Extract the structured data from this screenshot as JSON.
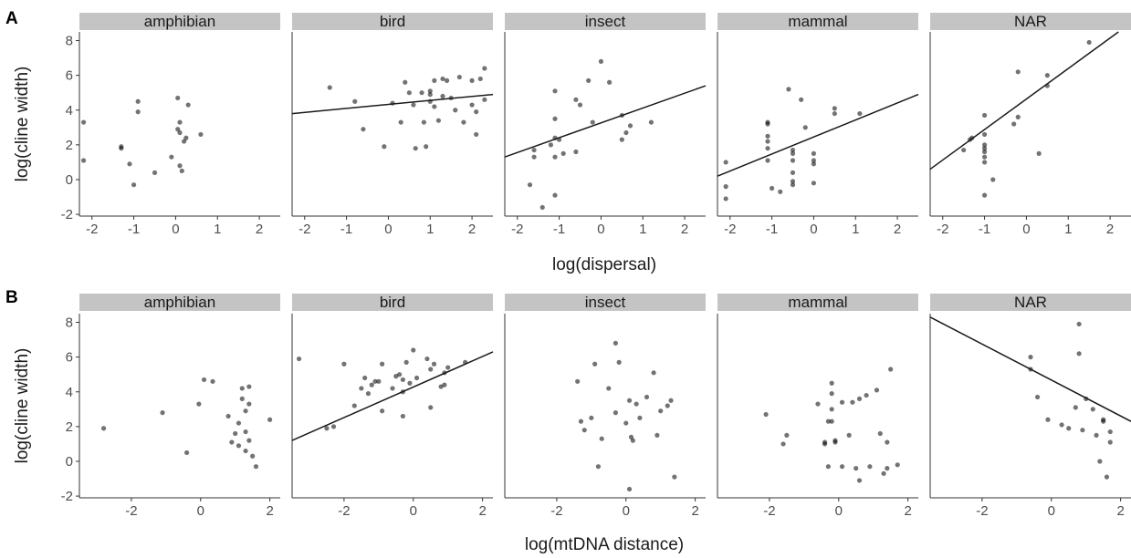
{
  "chart_data": [
    {
      "type": "scatter",
      "panel_label": "A",
      "xlabel": "log(dispersal)",
      "ylabel": "log(cline width)",
      "xlim": [
        -2.3,
        2.5
      ],
      "ylim": [
        -2.1,
        8.5
      ],
      "x_ticks": [
        -2,
        -1,
        0,
        1,
        2
      ],
      "y_ticks": [
        -2,
        0,
        2,
        4,
        6,
        8
      ],
      "facets": [
        {
          "name": "amphibian",
          "points": [
            [
              -2.2,
              3.3
            ],
            [
              -2.2,
              1.1
            ],
            [
              -1.3,
              1.9
            ],
            [
              -1.3,
              1.8
            ],
            [
              -1.1,
              0.9
            ],
            [
              -1.0,
              -0.3
            ],
            [
              -0.9,
              4.5
            ],
            [
              -0.9,
              3.9
            ],
            [
              -0.5,
              0.4
            ],
            [
              -0.1,
              1.3
            ],
            [
              0.05,
              4.7
            ],
            [
              0.05,
              2.9
            ],
            [
              0.1,
              3.3
            ],
            [
              0.1,
              2.7
            ],
            [
              0.1,
              0.8
            ],
            [
              0.15,
              0.5
            ],
            [
              0.2,
              2.2
            ],
            [
              0.25,
              2.4
            ],
            [
              0.3,
              4.3
            ],
            [
              0.6,
              2.6
            ]
          ],
          "fit": null
        },
        {
          "name": "bird",
          "points": [
            [
              -1.4,
              5.3
            ],
            [
              -0.8,
              4.5
            ],
            [
              -0.6,
              2.9
            ],
            [
              -0.1,
              1.9
            ],
            [
              0.1,
              4.4
            ],
            [
              0.3,
              3.3
            ],
            [
              0.4,
              5.6
            ],
            [
              0.5,
              5.0
            ],
            [
              0.6,
              4.3
            ],
            [
              0.65,
              1.8
            ],
            [
              0.8,
              5.0
            ],
            [
              0.85,
              3.3
            ],
            [
              0.9,
              1.9
            ],
            [
              1.0,
              5.1
            ],
            [
              1.0,
              4.9
            ],
            [
              1.0,
              4.5
            ],
            [
              1.1,
              5.7
            ],
            [
              1.1,
              4.2
            ],
            [
              1.2,
              3.4
            ],
            [
              1.3,
              5.8
            ],
            [
              1.3,
              4.8
            ],
            [
              1.4,
              5.7
            ],
            [
              1.5,
              4.7
            ],
            [
              1.6,
              4.0
            ],
            [
              1.7,
              5.9
            ],
            [
              1.8,
              3.3
            ],
            [
              2.0,
              5.7
            ],
            [
              2.0,
              4.3
            ],
            [
              2.1,
              3.9
            ],
            [
              2.1,
              2.6
            ],
            [
              2.2,
              5.8
            ],
            [
              2.3,
              6.4
            ],
            [
              2.3,
              4.6
            ]
          ],
          "fit": {
            "x": [
              -2.3,
              2.5
            ],
            "y": [
              3.8,
              4.9
            ]
          }
        },
        {
          "name": "insect",
          "points": [
            [
              -1.7,
              -0.3
            ],
            [
              -1.6,
              1.3
            ],
            [
              -1.6,
              1.7
            ],
            [
              -1.4,
              -1.6
            ],
            [
              -1.2,
              2.0
            ],
            [
              -1.1,
              5.1
            ],
            [
              -1.1,
              3.5
            ],
            [
              -1.1,
              2.4
            ],
            [
              -1.1,
              1.3
            ],
            [
              -1.1,
              -0.9
            ],
            [
              -1.0,
              2.3
            ],
            [
              -0.9,
              1.5
            ],
            [
              -0.6,
              4.6
            ],
            [
              -0.6,
              1.6
            ],
            [
              -0.5,
              4.3
            ],
            [
              -0.3,
              5.7
            ],
            [
              -0.2,
              3.3
            ],
            [
              0.0,
              6.8
            ],
            [
              0.2,
              5.6
            ],
            [
              0.5,
              3.7
            ],
            [
              0.5,
              2.3
            ],
            [
              0.6,
              2.7
            ],
            [
              0.7,
              3.1
            ],
            [
              1.2,
              3.3
            ]
          ],
          "fit": {
            "x": [
              -2.3,
              2.5
            ],
            "y": [
              1.3,
              5.4
            ]
          }
        },
        {
          "name": "mammal",
          "points": [
            [
              -2.1,
              1.0
            ],
            [
              -2.1,
              -0.4
            ],
            [
              -2.1,
              -1.1
            ],
            [
              -1.1,
              3.3
            ],
            [
              -1.1,
              3.2
            ],
            [
              -1.1,
              2.5
            ],
            [
              -1.1,
              2.2
            ],
            [
              -1.1,
              1.8
            ],
            [
              -1.1,
              1.1
            ],
            [
              -1.0,
              -0.5
            ],
            [
              -0.8,
              -0.7
            ],
            [
              -0.6,
              5.2
            ],
            [
              -0.5,
              1.7
            ],
            [
              -0.5,
              1.5
            ],
            [
              -0.5,
              1.1
            ],
            [
              -0.5,
              0.4
            ],
            [
              -0.5,
              -0.1
            ],
            [
              -0.5,
              -0.3
            ],
            [
              -0.3,
              4.6
            ],
            [
              -0.2,
              3.0
            ],
            [
              0.0,
              1.5
            ],
            [
              0.0,
              1.1
            ],
            [
              0.0,
              0.9
            ],
            [
              0.0,
              -0.2
            ],
            [
              0.5,
              4.1
            ],
            [
              0.5,
              3.8
            ],
            [
              1.1,
              3.8
            ]
          ],
          "fit": {
            "x": [
              -2.3,
              2.5
            ],
            "y": [
              0.2,
              4.9
            ]
          }
        },
        {
          "name": "NAR",
          "points": [
            [
              -1.5,
              1.7
            ],
            [
              -1.35,
              2.3
            ],
            [
              -1.3,
              2.4
            ],
            [
              -1.0,
              3.7
            ],
            [
              -1.0,
              2.6
            ],
            [
              -1.0,
              2.0
            ],
            [
              -1.0,
              1.8
            ],
            [
              -1.0,
              1.6
            ],
            [
              -1.0,
              1.3
            ],
            [
              -1.0,
              1.0
            ],
            [
              -1.0,
              -0.9
            ],
            [
              -0.8,
              0.0
            ],
            [
              -0.3,
              3.2
            ],
            [
              -0.2,
              6.2
            ],
            [
              -0.2,
              3.6
            ],
            [
              0.3,
              1.5
            ],
            [
              0.5,
              6.0
            ],
            [
              0.5,
              5.4
            ],
            [
              1.5,
              7.9
            ]
          ],
          "fit": {
            "x": [
              -2.3,
              2.2
            ],
            "y": [
              0.6,
              8.5
            ]
          }
        }
      ]
    },
    {
      "type": "scatter",
      "panel_label": "B",
      "xlabel": "log(mtDNA distance)",
      "ylabel": "log(cline width)",
      "xlim": [
        -3.5,
        2.3
      ],
      "ylim": [
        -2.1,
        8.5
      ],
      "x_ticks": [
        -2,
        0,
        2
      ],
      "y_ticks": [
        -2,
        0,
        2,
        4,
        6,
        8
      ],
      "facets": [
        {
          "name": "amphibian",
          "points": [
            [
              -2.8,
              1.9
            ],
            [
              -1.1,
              2.8
            ],
            [
              -0.4,
              0.5
            ],
            [
              -0.05,
              3.3
            ],
            [
              0.1,
              4.7
            ],
            [
              0.35,
              4.6
            ],
            [
              0.8,
              2.6
            ],
            [
              0.9,
              1.1
            ],
            [
              1.0,
              1.6
            ],
            [
              1.1,
              0.9
            ],
            [
              1.1,
              2.2
            ],
            [
              1.2,
              4.2
            ],
            [
              1.2,
              3.6
            ],
            [
              1.3,
              2.9
            ],
            [
              1.3,
              1.7
            ],
            [
              1.3,
              0.6
            ],
            [
              1.4,
              4.3
            ],
            [
              1.4,
              3.3
            ],
            [
              1.4,
              1.2
            ],
            [
              1.5,
              0.3
            ],
            [
              1.6,
              -0.3
            ],
            [
              2.0,
              2.4
            ]
          ],
          "fit": null
        },
        {
          "name": "bird",
          "points": [
            [
              -3.3,
              5.9
            ],
            [
              -2.5,
              1.9
            ],
            [
              -2.3,
              2.0
            ],
            [
              -2.0,
              5.6
            ],
            [
              -1.7,
              3.2
            ],
            [
              -1.5,
              4.2
            ],
            [
              -1.4,
              4.8
            ],
            [
              -1.3,
              3.9
            ],
            [
              -1.2,
              4.4
            ],
            [
              -1.1,
              4.6
            ],
            [
              -1.0,
              4.6
            ],
            [
              -0.9,
              2.9
            ],
            [
              -0.9,
              5.6
            ],
            [
              -0.6,
              4.2
            ],
            [
              -0.5,
              4.9
            ],
            [
              -0.4,
              5.0
            ],
            [
              -0.3,
              2.6
            ],
            [
              -0.3,
              4.0
            ],
            [
              -0.3,
              4.7
            ],
            [
              -0.2,
              5.7
            ],
            [
              -0.1,
              4.5
            ],
            [
              0.0,
              6.4
            ],
            [
              0.1,
              4.8
            ],
            [
              0.4,
              5.9
            ],
            [
              0.5,
              3.1
            ],
            [
              0.5,
              5.3
            ],
            [
              0.6,
              5.6
            ],
            [
              0.8,
              4.3
            ],
            [
              0.9,
              4.4
            ],
            [
              0.9,
              5.1
            ],
            [
              1.0,
              5.4
            ],
            [
              1.5,
              5.7
            ]
          ],
          "fit": {
            "x": [
              -3.5,
              2.3
            ],
            "y": [
              1.2,
              6.3
            ]
          }
        },
        {
          "name": "insect",
          "points": [
            [
              -1.4,
              4.6
            ],
            [
              -1.3,
              2.3
            ],
            [
              -1.2,
              1.8
            ],
            [
              -1.0,
              2.5
            ],
            [
              -0.9,
              5.6
            ],
            [
              -0.8,
              -0.3
            ],
            [
              -0.7,
              1.3
            ],
            [
              -0.5,
              4.2
            ],
            [
              -0.3,
              2.8
            ],
            [
              -0.3,
              6.8
            ],
            [
              -0.2,
              5.7
            ],
            [
              0.0,
              2.2
            ],
            [
              0.1,
              3.5
            ],
            [
              0.1,
              -1.6
            ],
            [
              0.15,
              1.4
            ],
            [
              0.2,
              1.2
            ],
            [
              0.3,
              3.3
            ],
            [
              0.4,
              2.5
            ],
            [
              0.6,
              3.7
            ],
            [
              0.8,
              5.1
            ],
            [
              0.9,
              1.5
            ],
            [
              1.0,
              2.9
            ],
            [
              1.2,
              3.2
            ],
            [
              1.3,
              3.5
            ],
            [
              1.4,
              -0.9
            ]
          ],
          "fit": null
        },
        {
          "name": "mammal",
          "points": [
            [
              -2.1,
              2.7
            ],
            [
              -1.6,
              1.0
            ],
            [
              -1.5,
              1.5
            ],
            [
              -0.6,
              3.3
            ],
            [
              -0.4,
              1.0
            ],
            [
              -0.4,
              1.1
            ],
            [
              -0.3,
              2.3
            ],
            [
              -0.3,
              -0.3
            ],
            [
              -0.2,
              4.5
            ],
            [
              -0.2,
              3.9
            ],
            [
              -0.2,
              3.0
            ],
            [
              -0.2,
              2.3
            ],
            [
              -0.1,
              1.2
            ],
            [
              -0.1,
              1.1
            ],
            [
              0.1,
              3.4
            ],
            [
              0.1,
              -0.3
            ],
            [
              0.3,
              1.5
            ],
            [
              0.4,
              3.4
            ],
            [
              0.5,
              -0.4
            ],
            [
              0.6,
              3.6
            ],
            [
              0.6,
              -1.1
            ],
            [
              0.8,
              3.8
            ],
            [
              0.9,
              -0.3
            ],
            [
              1.1,
              4.1
            ],
            [
              1.2,
              1.6
            ],
            [
              1.3,
              -0.7
            ],
            [
              1.4,
              1.1
            ],
            [
              1.4,
              -0.4
            ],
            [
              1.5,
              5.3
            ],
            [
              1.7,
              -0.2
            ]
          ],
          "fit": null
        },
        {
          "name": "NAR",
          "points": [
            [
              -0.6,
              6.0
            ],
            [
              -0.6,
              5.3
            ],
            [
              -0.4,
              3.7
            ],
            [
              -0.1,
              2.4
            ],
            [
              0.3,
              2.1
            ],
            [
              0.5,
              1.9
            ],
            [
              0.7,
              3.1
            ],
            [
              0.8,
              7.9
            ],
            [
              0.8,
              6.2
            ],
            [
              0.9,
              1.8
            ],
            [
              1.0,
              3.6
            ],
            [
              1.2,
              3.0
            ],
            [
              1.3,
              1.5
            ],
            [
              1.4,
              0.0
            ],
            [
              1.5,
              2.4
            ],
            [
              1.5,
              2.3
            ],
            [
              1.6,
              -0.9
            ],
            [
              1.7,
              1.7
            ],
            [
              1.7,
              1.1
            ]
          ],
          "fit": {
            "x": [
              -3.5,
              2.3
            ],
            "y": [
              8.3,
              2.3
            ]
          }
        }
      ]
    }
  ]
}
